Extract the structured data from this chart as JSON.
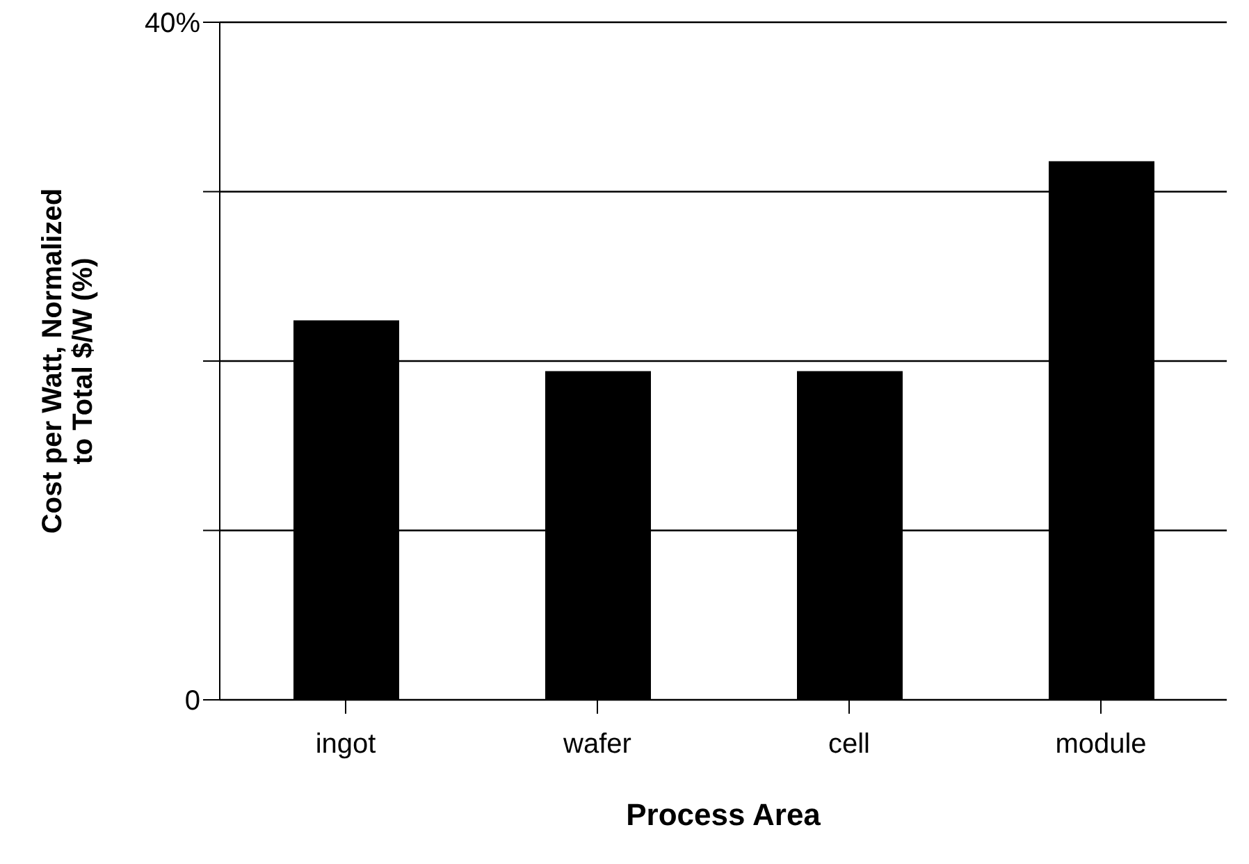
{
  "chart_data": {
    "type": "bar",
    "xlabel": "Process Area",
    "ylabel": "Cost per Watt, Normalized\nto Total $/W  (%)",
    "categories": [
      "ingot",
      "wafer",
      "cell",
      "module"
    ],
    "values": [
      22.4,
      19.4,
      19.4,
      31.8
    ],
    "color": "#000000",
    "ylim": [
      0,
      40
    ],
    "yticks": [
      0,
      {
        "value": 10,
        "label": null
      },
      {
        "value": 20,
        "label": null
      },
      {
        "value": 30,
        "label": null
      },
      {
        "value": 40,
        "label": "40%"
      }
    ],
    "grid": "y"
  }
}
